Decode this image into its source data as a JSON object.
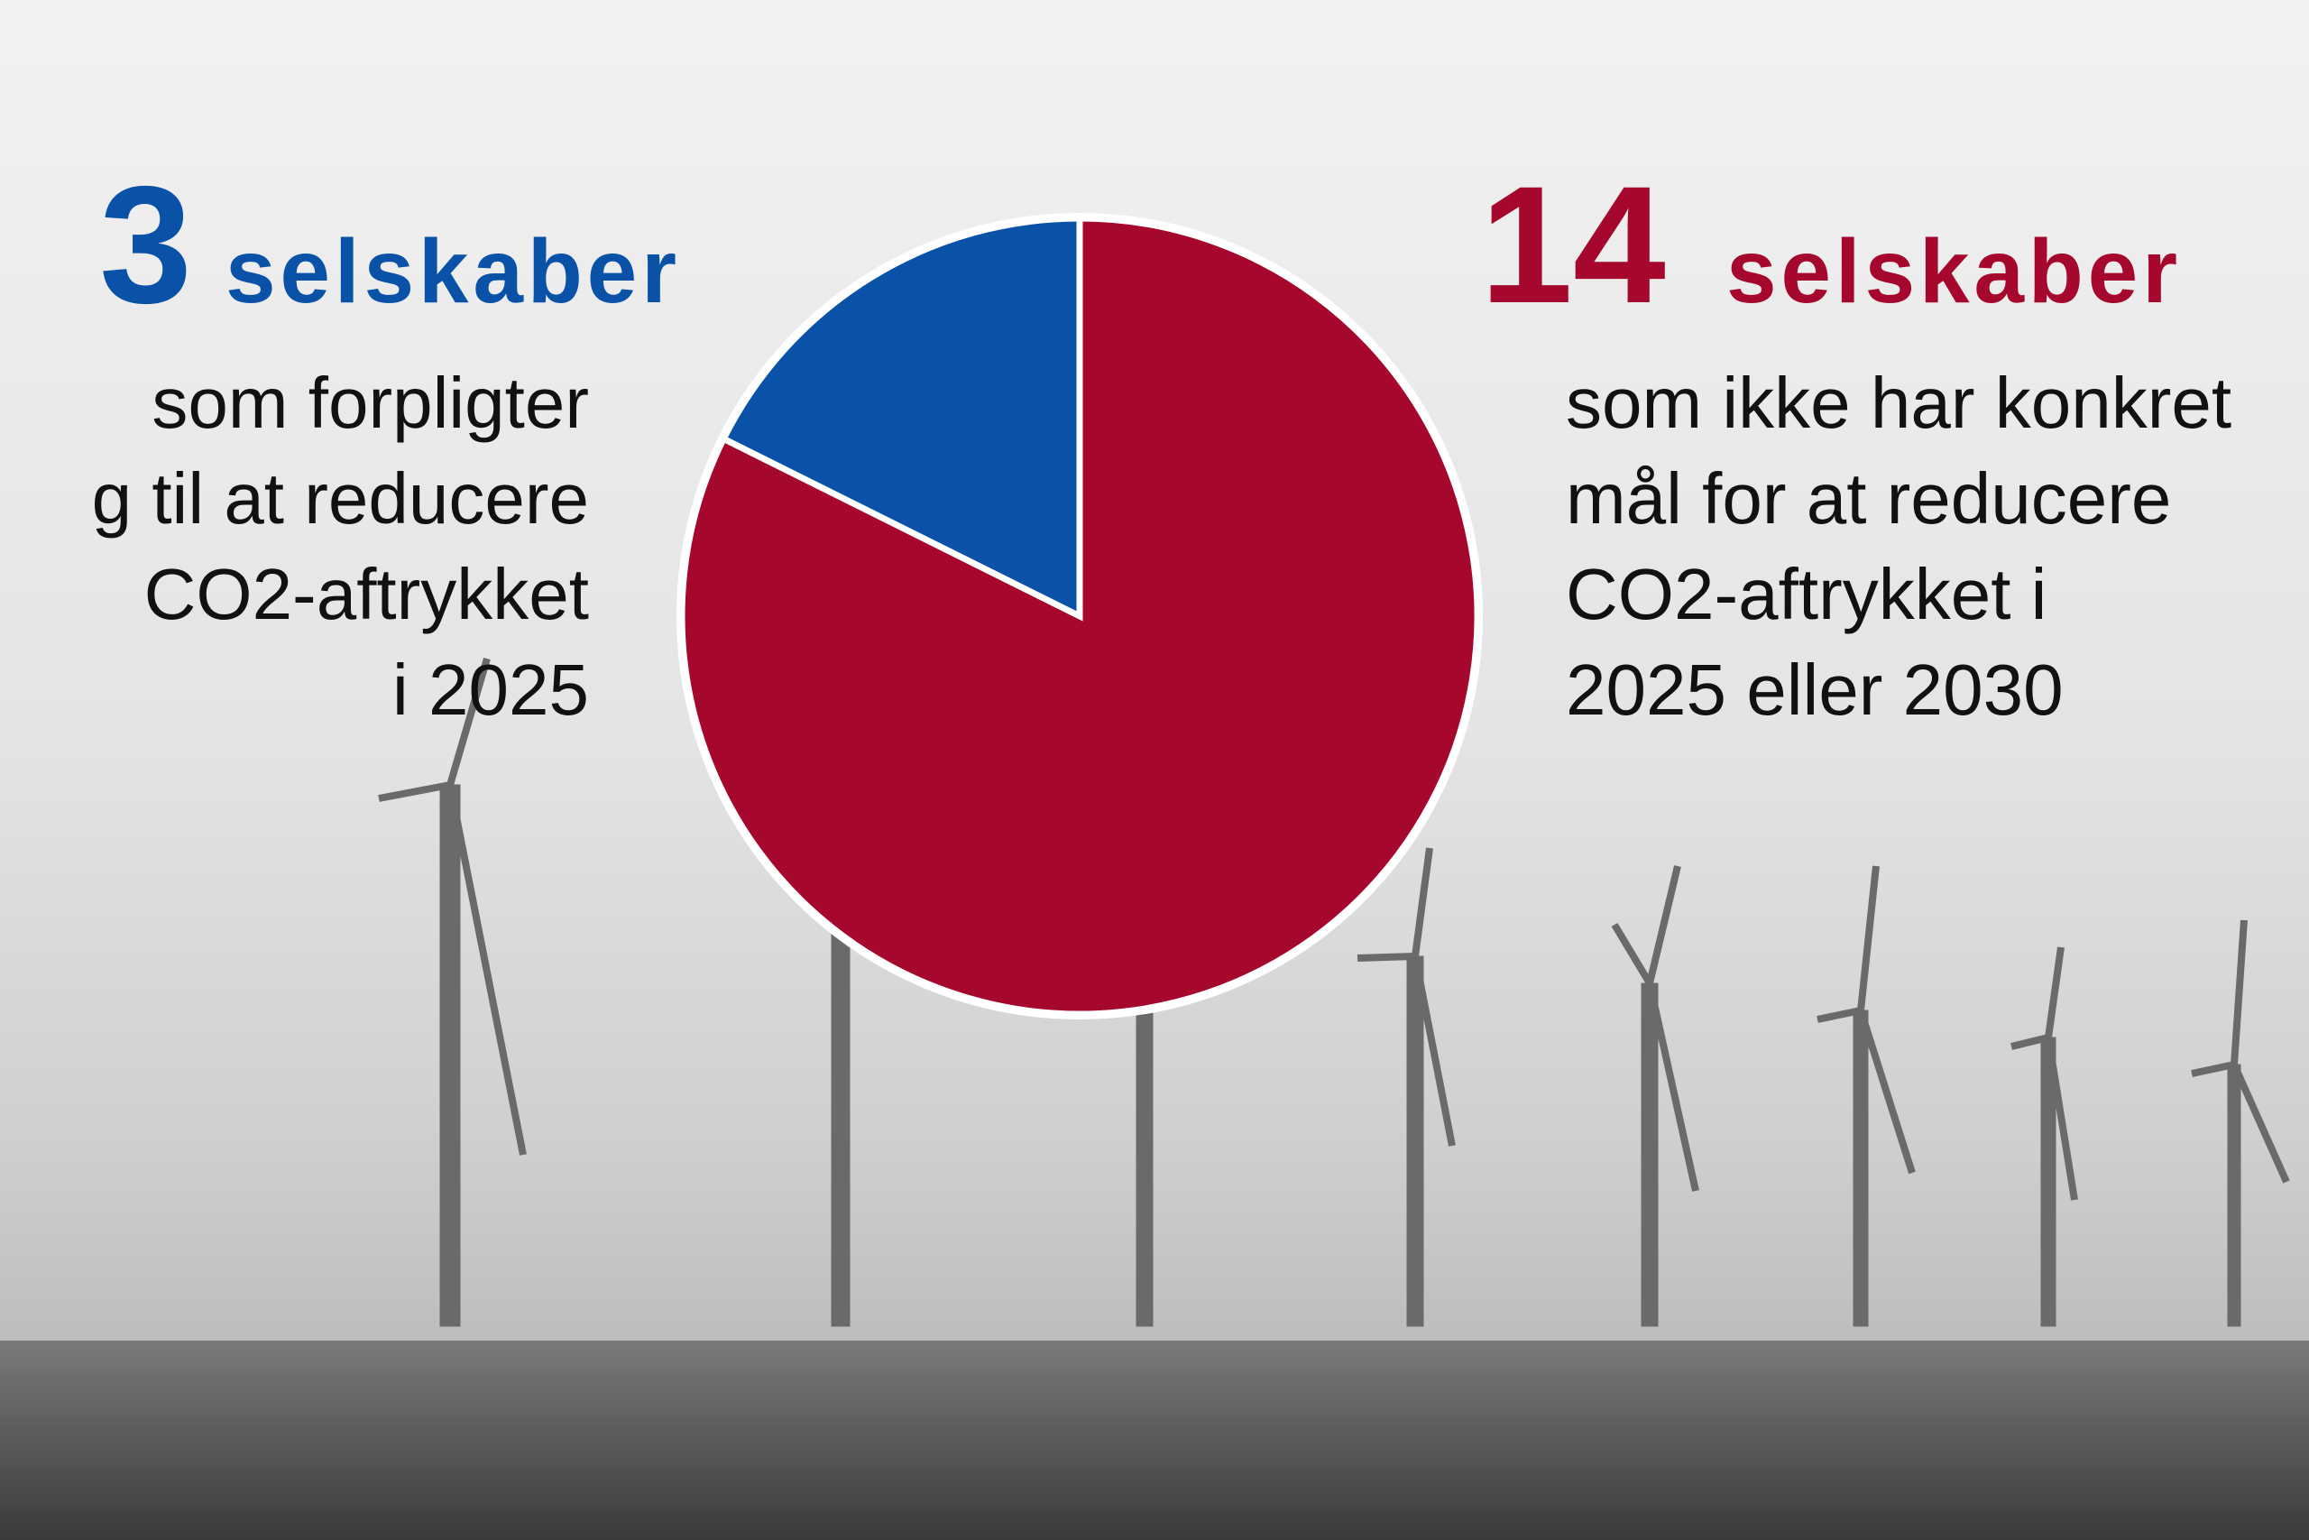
{
  "chart_data": {
    "type": "pie",
    "values": [
      3,
      14
    ],
    "colors": [
      "#0a52a8",
      "#a5082c"
    ],
    "labels": [
      "selskaber",
      "selskaber"
    ],
    "descriptions": [
      [
        "som forpligter",
        "g til at reducere",
        "CO2-aftrykket",
        "i 2025"
      ],
      [
        "som ikke har konkret",
        "mål for at reducere",
        "CO2-aftrykket i",
        "2025 eller 2030"
      ]
    ]
  }
}
